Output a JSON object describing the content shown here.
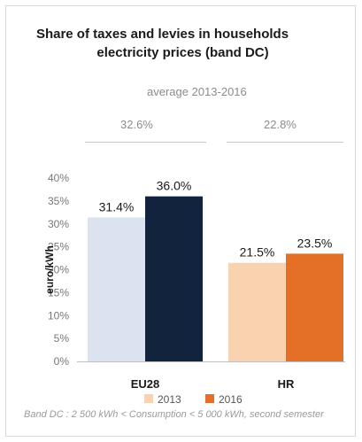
{
  "chart_data": {
    "type": "bar",
    "title_line1": "Share of taxes and levies in households",
    "title_line2": "electricity prices (band DC)",
    "ylabel": "euro/kWh",
    "categories": [
      "EU28",
      "HR"
    ],
    "series": [
      {
        "name": "2013",
        "values": [
          31.4,
          21.5
        ],
        "labels": [
          "31.4%",
          "21.5%"
        ]
      },
      {
        "name": "2016",
        "values": [
          36.0,
          23.5
        ],
        "labels": [
          "36.0%",
          "23.5%"
        ]
      }
    ],
    "ylim": [
      0,
      40
    ],
    "yticks": [
      "0%",
      "5%",
      "10%",
      "15%",
      "20%",
      "25%",
      "30%",
      "35%",
      "40%"
    ],
    "legend_position": "bottom",
    "grid": false,
    "average": {
      "label": "average 2013-2016",
      "values": [
        "32.6%",
        "22.8%"
      ]
    },
    "footnote": "Band DC : 2 500 kWh < Consumption < 5 000 kWh, second semester",
    "colors": {
      "EU28": {
        "2013": "#dbe3f1",
        "2016": "#12233d"
      },
      "HR": {
        "2013": "#f9d2b0",
        "2016": "#e46f26"
      }
    }
  }
}
